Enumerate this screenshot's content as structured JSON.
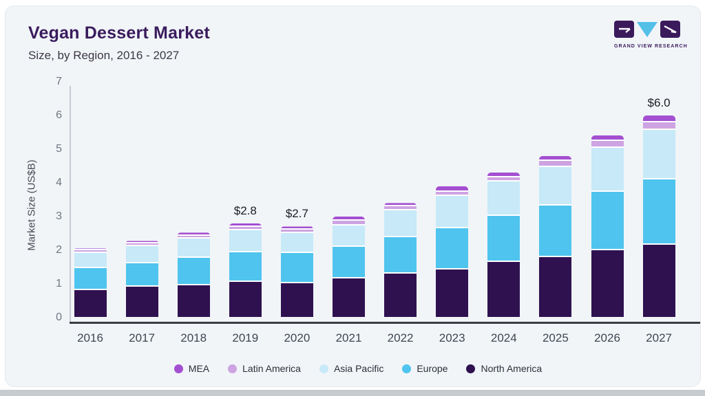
{
  "page": {
    "title": "Vegan Dessert Market",
    "subtitle": "Size, by Region, 2016 - 2027",
    "logo": {
      "brand": "GRAND VIEW RESEARCH"
    }
  },
  "chart_data": {
    "type": "bar",
    "stacked": true,
    "title": "Vegan Dessert Market",
    "subtitle": "Size, by Region, 2016 - 2027",
    "xlabel": "",
    "ylabel": "Market Size (US$B)",
    "ylim": [
      0,
      7
    ],
    "yticks": [
      0,
      1,
      2,
      3,
      4,
      5,
      6,
      7
    ],
    "grid": false,
    "legend_position": "bottom",
    "categories": [
      "2016",
      "2017",
      "2018",
      "2019",
      "2020",
      "2021",
      "2022",
      "2023",
      "2024",
      "2025",
      "2026",
      "2027"
    ],
    "series": [
      {
        "name": "North America",
        "color": "#2f1150",
        "values": [
          0.8,
          0.9,
          0.96,
          1.05,
          1.02,
          1.15,
          1.3,
          1.43,
          1.65,
          1.78,
          2.0,
          2.15
        ]
      },
      {
        "name": "Europe",
        "color": "#4fc4ee",
        "values": [
          0.67,
          0.71,
          0.8,
          0.89,
          0.9,
          0.95,
          1.09,
          1.22,
          1.37,
          1.54,
          1.73,
          1.95
        ]
      },
      {
        "name": "Asia Pacific",
        "color": "#c7e9f8",
        "values": [
          0.45,
          0.5,
          0.58,
          0.64,
          0.59,
          0.64,
          0.79,
          0.95,
          1.01,
          1.15,
          1.31,
          1.48
        ]
      },
      {
        "name": "Latin America",
        "color": "#cda3e2",
        "values": [
          0.07,
          0.08,
          0.09,
          0.11,
          0.09,
          0.13,
          0.12,
          0.14,
          0.13,
          0.19,
          0.2,
          0.22
        ]
      },
      {
        "name": "MEA",
        "color": "#a44fd1",
        "values": [
          0.06,
          0.08,
          0.09,
          0.11,
          0.1,
          0.13,
          0.1,
          0.16,
          0.14,
          0.14,
          0.16,
          0.2
        ]
      }
    ],
    "legend_order": [
      "MEA",
      "Latin America",
      "Asia Pacific",
      "Europe",
      "North America"
    ],
    "annotations": [
      {
        "category": "2019",
        "text": "$2.8"
      },
      {
        "category": "2020",
        "text": "$2.7"
      },
      {
        "category": "2027",
        "text": "$6.0"
      }
    ]
  }
}
